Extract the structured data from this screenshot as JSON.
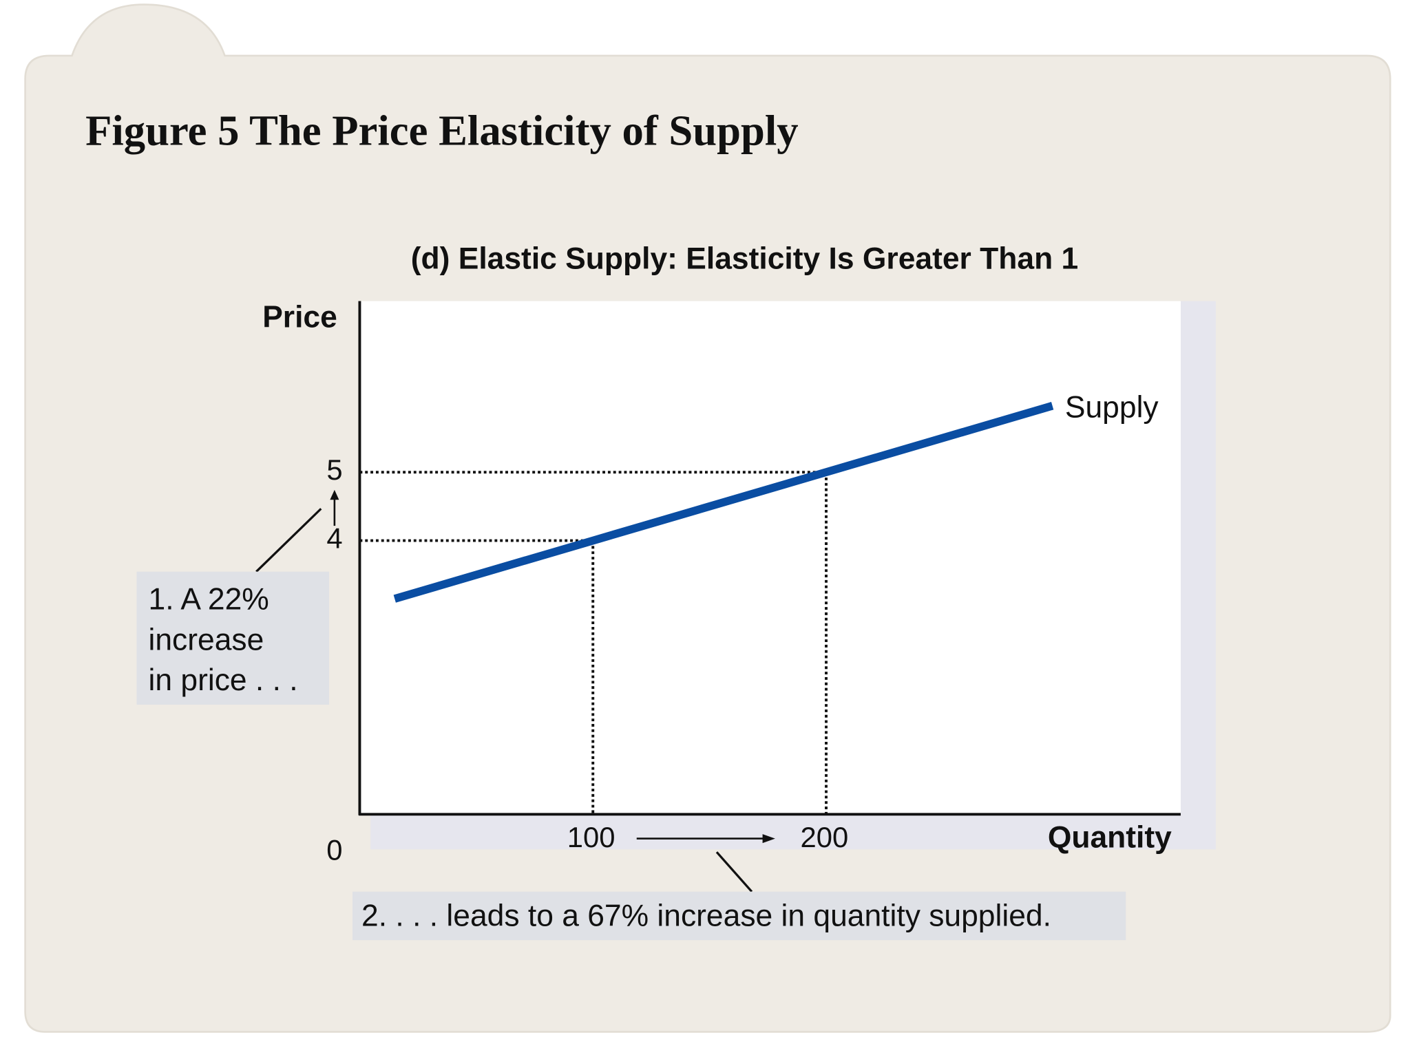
{
  "chart_data": {
    "type": "line",
    "title": "Figure 5 The Price Elasticity of Supply",
    "subtitle": "(d) Elastic Supply: Elasticity Is Greater Than 1",
    "y_label": "Price",
    "x_label": "Quantity",
    "origin_label": 0,
    "x": [
      15,
      100,
      200,
      297
    ],
    "series": [
      {
        "name": "Supply",
        "color": "#0a4da2",
        "values": [
          3.15,
          4,
          5,
          5.97
        ]
      }
    ],
    "xlim": [
      0,
      352
    ],
    "ylim": [
      0,
      7.5
    ],
    "xticks": [
      100,
      200
    ],
    "yticks": [
      4,
      5
    ],
    "annotations": [
      {
        "lines": [
          "1. A 22%",
          "increase",
          "in price . . ."
        ]
      },
      {
        "text": "2. . . . leads to a 67% increase in quantity supplied."
      }
    ]
  }
}
